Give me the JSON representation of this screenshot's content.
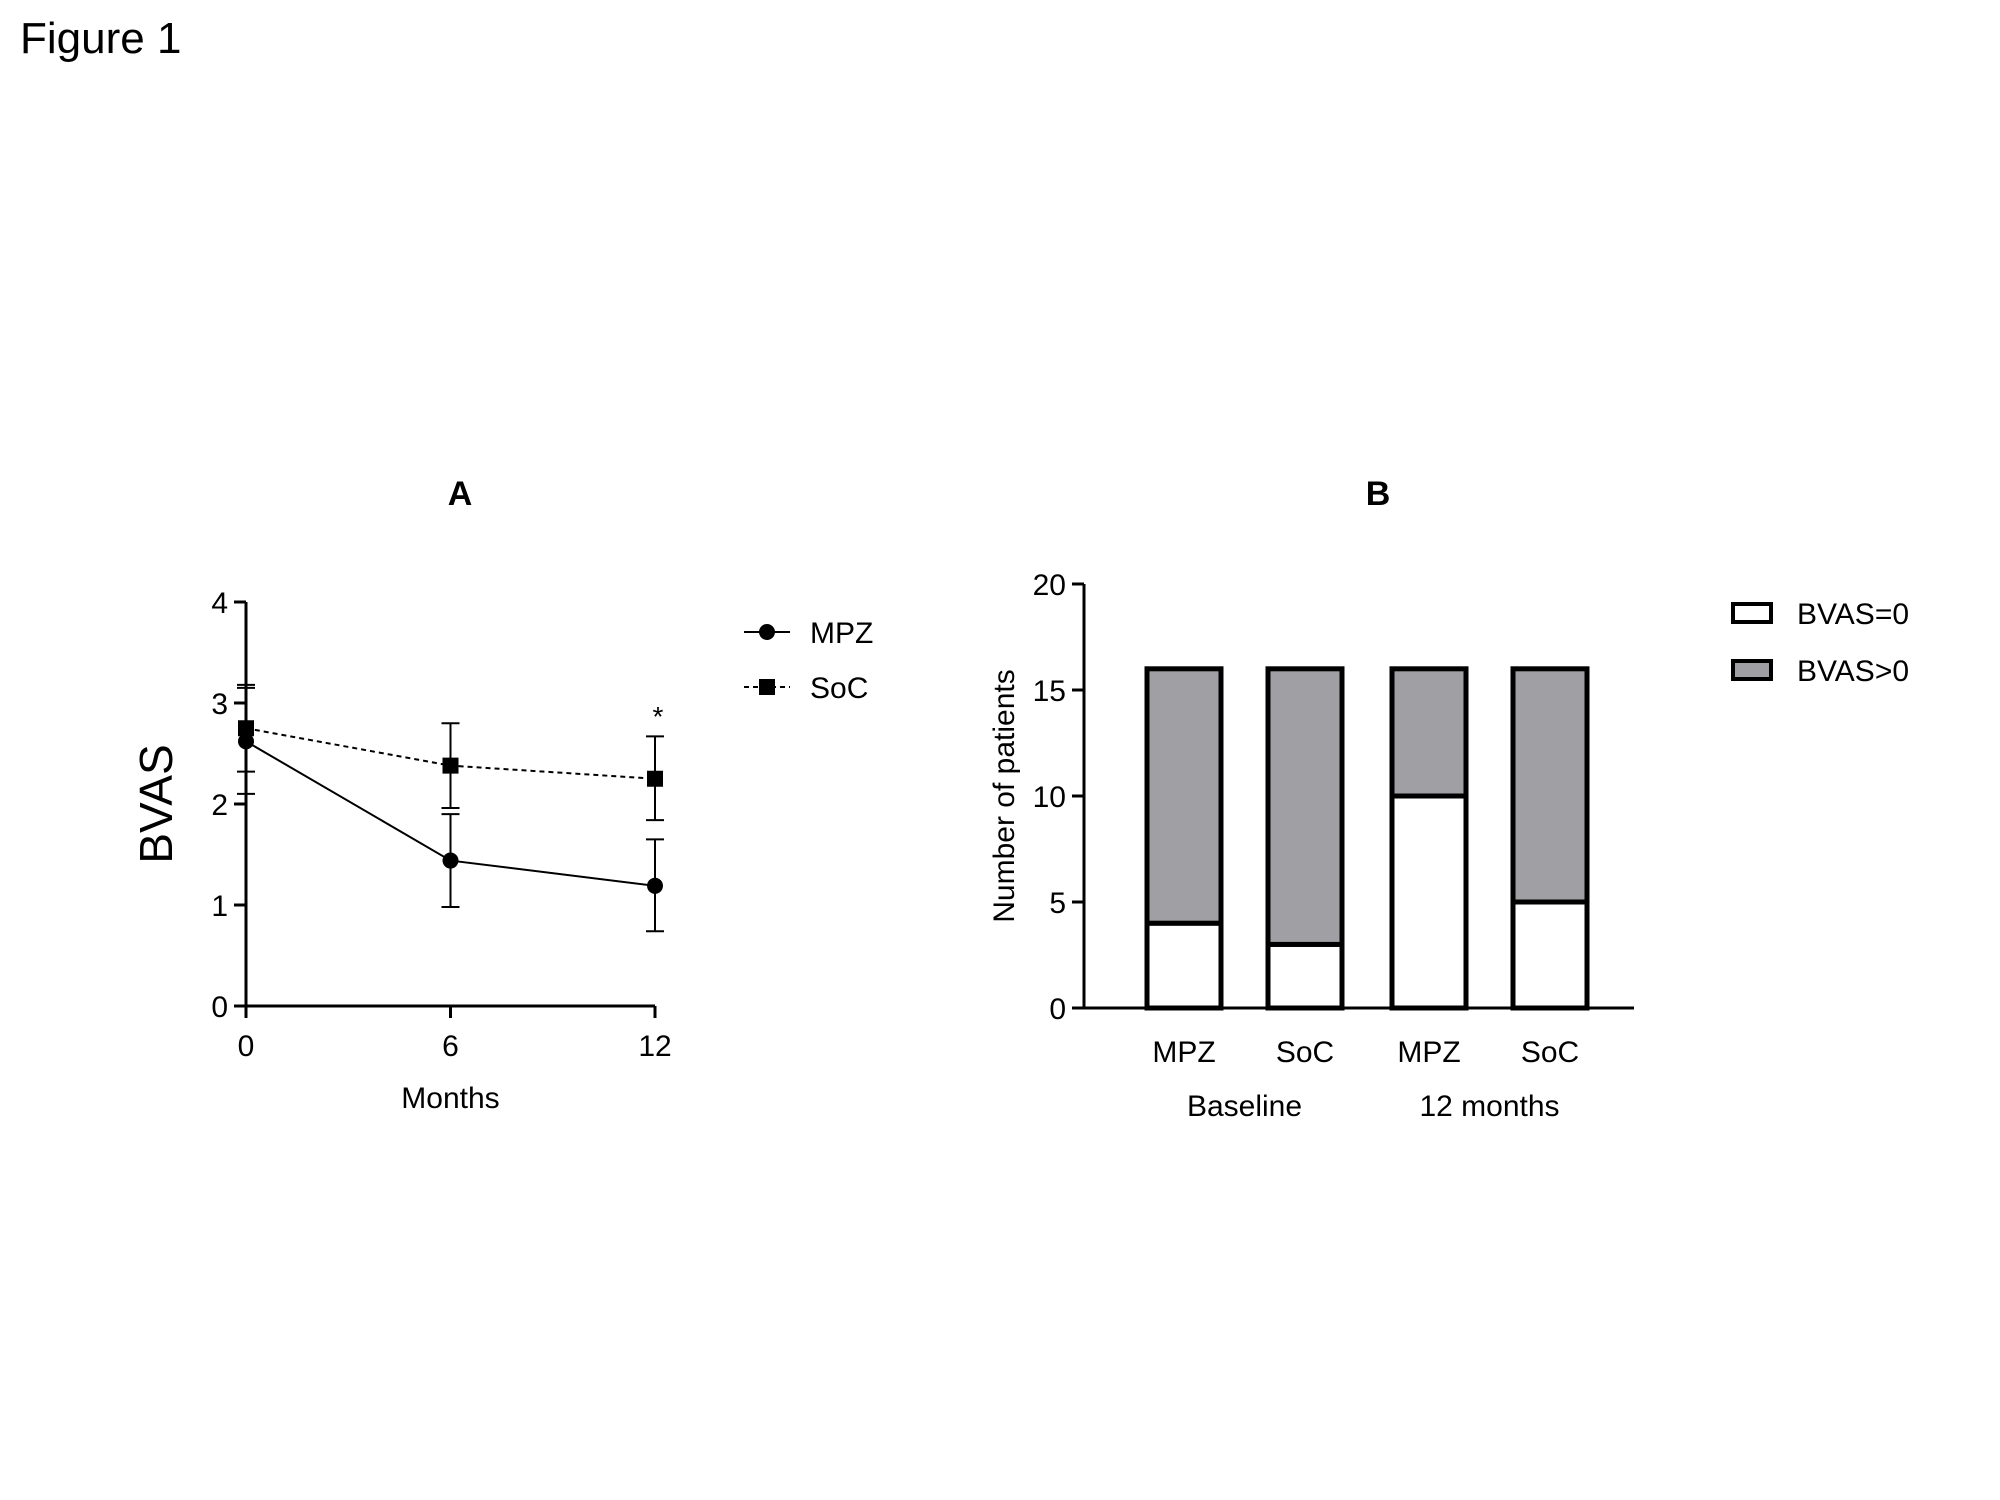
{
  "figure_title": "Figure 1",
  "chart_data": [
    {
      "type": "line",
      "panel": "A",
      "xlabel": "Months",
      "ylabel": "BVAS",
      "xlim": [
        0,
        12
      ],
      "ylim": [
        0,
        4
      ],
      "x_ticks": [
        "0",
        "6",
        "12"
      ],
      "y_ticks": [
        "0",
        "1",
        "2",
        "3",
        "4"
      ],
      "x": [
        0,
        6,
        12
      ],
      "series": [
        {
          "name": "MPZ",
          "marker": "circle",
          "line": "solid",
          "values": [
            2.62,
            1.44,
            1.19
          ],
          "err_low": [
            2.1,
            0.98,
            0.74
          ],
          "err_high": [
            3.15,
            1.9,
            1.65
          ]
        },
        {
          "name": "SoC",
          "marker": "square",
          "line": "dashed",
          "values": [
            2.75,
            2.38,
            2.25
          ],
          "err_low": [
            2.32,
            1.96,
            1.84
          ],
          "err_high": [
            3.18,
            2.8,
            2.67
          ]
        }
      ],
      "annotations": [
        {
          "x": 12,
          "text": "*"
        }
      ],
      "legend_position": "right"
    },
    {
      "type": "bar",
      "stacked": true,
      "panel": "B",
      "ylabel": "Number of patients",
      "ylim": [
        0,
        20
      ],
      "y_ticks": [
        "0",
        "5",
        "10",
        "15",
        "20"
      ],
      "categories": [
        "MPZ",
        "SoC",
        "MPZ",
        "SoC"
      ],
      "groups": [
        "Baseline",
        "12 months"
      ],
      "series": [
        {
          "name": "BVAS=0",
          "color": "#ffffff",
          "values": [
            4,
            3,
            10,
            5
          ]
        },
        {
          "name": "BVAS>0",
          "color": "#a0a0a4",
          "values": [
            12,
            13,
            6,
            11
          ]
        }
      ],
      "legend_position": "right"
    }
  ]
}
